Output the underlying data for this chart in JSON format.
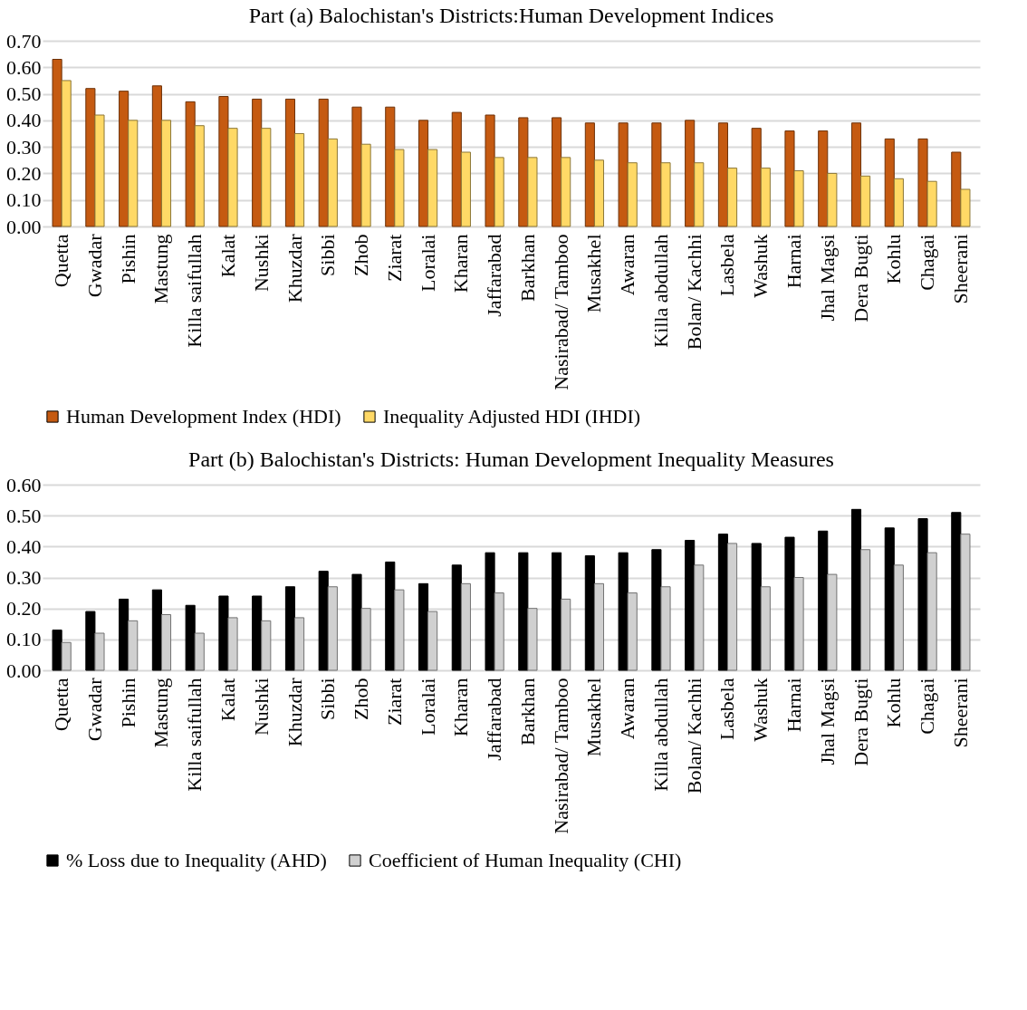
{
  "chart_data": [
    {
      "type": "bar",
      "title": "Part (a) Balochistan's Districts:Human Development Indices",
      "categories": [
        "Quetta",
        "Gwadar",
        "Pishin",
        "Mastung",
        "Killa saifullah",
        "Kalat",
        "Nushki",
        "Khuzdar",
        "Sibbi",
        "Zhob",
        "Ziarat",
        "Loralai",
        "Kharan",
        "Jaffarabad",
        "Barkhan",
        "Nasirabad/ Tamboo",
        "Musakhel",
        "Awaran",
        "Killa abdullah",
        "Bolan/ Kachhi",
        "Lasbela",
        "Washuk",
        "Harnai",
        "Jhal Magsi",
        "Dera Bugti",
        "Kohlu",
        "Chagai",
        "Sheerani"
      ],
      "series": [
        {
          "name": "Human Development Index (HDI)",
          "color": "#c55a11",
          "values": [
            0.63,
            0.52,
            0.51,
            0.53,
            0.47,
            0.49,
            0.48,
            0.48,
            0.48,
            0.45,
            0.45,
            0.4,
            0.43,
            0.42,
            0.41,
            0.41,
            0.39,
            0.39,
            0.39,
            0.4,
            0.39,
            0.37,
            0.36,
            0.36,
            0.39,
            0.33,
            0.33,
            0.28
          ]
        },
        {
          "name": "Inequality Adjusted HDI (IHDI)",
          "color": "#ffd966",
          "values": [
            0.55,
            0.42,
            0.4,
            0.4,
            0.38,
            0.37,
            0.37,
            0.35,
            0.33,
            0.31,
            0.29,
            0.29,
            0.28,
            0.26,
            0.26,
            0.26,
            0.25,
            0.24,
            0.24,
            0.24,
            0.22,
            0.22,
            0.21,
            0.2,
            0.19,
            0.18,
            0.17,
            0.14
          ]
        }
      ],
      "ylim": [
        0,
        0.7
      ],
      "yticks": [
        {
          "value": 0,
          "label": "0.00"
        },
        {
          "value": 0.1,
          "label": "0.10"
        },
        {
          "value": 0.2,
          "label": "0.20"
        },
        {
          "value": 0.3,
          "label": "0.30"
        },
        {
          "value": 0.4,
          "label": "0.40"
        },
        {
          "value": 0.5,
          "label": "0.50"
        },
        {
          "value": 0.6,
          "label": "0.60"
        },
        {
          "value": 0.7,
          "label": "0.70"
        }
      ],
      "grid": "y",
      "legend": "bottom"
    },
    {
      "type": "bar",
      "title": "Part (b) Balochistan's Districts: Human Development Inequality Measures",
      "categories": [
        "Quetta",
        "Gwadar",
        "Pishin",
        "Mastung",
        "Killa saifullah",
        "Kalat",
        "Nushki",
        "Khuzdar",
        "Sibbi",
        "Zhob",
        "Ziarat",
        "Loralai",
        "Kharan",
        "Jaffarabad",
        "Barkhan",
        "Nasirabad/ Tamboo",
        "Musakhel",
        "Awaran",
        "Killa abdullah",
        "Bolan/ Kachhi",
        "Lasbela",
        "Washuk",
        "Harnai",
        "Jhal Magsi",
        "Dera Bugti",
        "Kohlu",
        "Chagai",
        "Sheerani"
      ],
      "series": [
        {
          "name": "% Loss due to Inequality (AHD)",
          "color": "#000000",
          "values": [
            0.13,
            0.19,
            0.23,
            0.26,
            0.21,
            0.24,
            0.24,
            0.27,
            0.32,
            0.31,
            0.35,
            0.28,
            0.34,
            0.38,
            0.38,
            0.38,
            0.37,
            0.38,
            0.39,
            0.42,
            0.44,
            0.41,
            0.43,
            0.45,
            0.52,
            0.46,
            0.49,
            0.51
          ]
        },
        {
          "name": "Coefficient of Human Inequality (CHI)",
          "color": "#d0d0d0",
          "values": [
            0.09,
            0.12,
            0.16,
            0.18,
            0.12,
            0.17,
            0.16,
            0.17,
            0.27,
            0.2,
            0.26,
            0.19,
            0.28,
            0.25,
            0.2,
            0.23,
            0.28,
            0.25,
            0.27,
            0.34,
            0.41,
            0.27,
            0.3,
            0.31,
            0.39,
            0.34,
            0.38,
            0.44
          ]
        }
      ],
      "ylim": [
        0,
        0.6
      ],
      "yticks": [
        {
          "value": 0,
          "label": "0.00"
        },
        {
          "value": 0.1,
          "label": "0.10"
        },
        {
          "value": 0.2,
          "label": "0.20"
        },
        {
          "value": 0.3,
          "label": "0.30"
        },
        {
          "value": 0.4,
          "label": "0.40"
        },
        {
          "value": 0.5,
          "label": "0.50"
        },
        {
          "value": 0.6,
          "label": "0.60"
        }
      ],
      "grid": "y",
      "legend": "bottom"
    }
  ]
}
